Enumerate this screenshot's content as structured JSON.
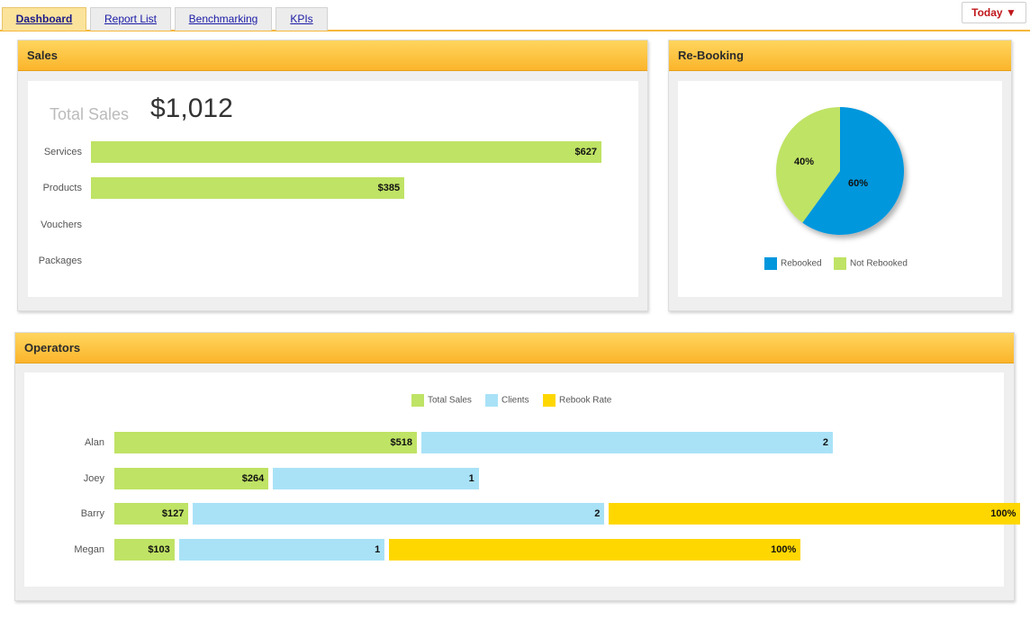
{
  "tabs": [
    {
      "label": "Dashboard",
      "active": true
    },
    {
      "label": "Report List",
      "active": false
    },
    {
      "label": "Benchmarking",
      "active": false
    },
    {
      "label": "KPIs",
      "active": false
    }
  ],
  "date_filter": {
    "label": "Today",
    "arrow": "▼"
  },
  "sales": {
    "title": "Sales",
    "total_label": "Total Sales",
    "total_value": "$1,012",
    "rows": [
      {
        "label": "Services",
        "value": 627,
        "display": "$627"
      },
      {
        "label": "Products",
        "value": 385,
        "display": "$385"
      },
      {
        "label": "Vouchers",
        "value": 0,
        "display": ""
      },
      {
        "label": "Packages",
        "value": 0,
        "display": ""
      }
    ]
  },
  "rebooking": {
    "title": "Re-Booking",
    "legend": [
      {
        "label": "Rebooked",
        "color": "#0097dd"
      },
      {
        "label": "Not Rebooked",
        "color": "#bfe365"
      }
    ]
  },
  "operators": {
    "title": "Operators",
    "legend": [
      {
        "label": "Total Sales",
        "color": "#bfe365"
      },
      {
        "label": "Clients",
        "color": "#a9e2f7"
      },
      {
        "label": "Rebook Rate",
        "color": "#ffd700"
      }
    ]
  },
  "chart_data": [
    {
      "type": "bar",
      "orientation": "horizontal",
      "categories": [
        "Services",
        "Products",
        "Vouchers",
        "Packages"
      ],
      "values": [
        627,
        385,
        0,
        0
      ],
      "data_labels": [
        "$627",
        "$385",
        "",
        ""
      ],
      "color": "#bfe365"
    },
    {
      "type": "pie",
      "labels": [
        "Rebooked",
        "Not Rebooked"
      ],
      "values": [
        60,
        40
      ],
      "data_labels": [
        "60%",
        "40%"
      ],
      "colors": [
        "#0097dd",
        "#bfe365"
      ],
      "legend": "bottom"
    },
    {
      "type": "bar",
      "orientation": "horizontal",
      "stacking": "side-by-side segments per row",
      "categories": [
        "Alan",
        "Joey",
        "Barry",
        "Megan"
      ],
      "series": [
        {
          "name": "Total Sales",
          "values": [
            518,
            264,
            127,
            103
          ],
          "data_labels": [
            "$518",
            "$264",
            "$127",
            "$103"
          ],
          "color": "#bfe365"
        },
        {
          "name": "Clients",
          "values": [
            2,
            1,
            2,
            1
          ],
          "data_labels": [
            "2",
            "1",
            "2",
            "1"
          ],
          "color": "#a9e2f7"
        },
        {
          "name": "Rebook Rate",
          "values": [
            0,
            0,
            100,
            100
          ],
          "data_labels": [
            "",
            "",
            "100%",
            "100%"
          ],
          "color": "#ffd700"
        }
      ],
      "legend": "top"
    }
  ]
}
